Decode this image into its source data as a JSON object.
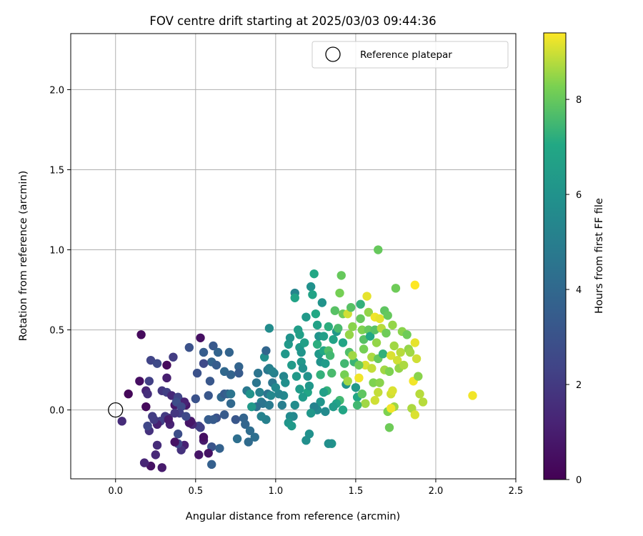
{
  "chart_data": {
    "type": "scatter",
    "title": "FOV centre drift starting at 2025/03/03 09:44:36",
    "xlabel": "Angular distance from reference (arcmin)",
    "ylabel": "Rotation from reference (arcmin)",
    "xlim": [
      -0.28,
      2.5
    ],
    "ylim": [
      -0.43,
      2.35
    ],
    "xticks": [
      0.0,
      0.5,
      1.0,
      1.5,
      2.0,
      2.5
    ],
    "yticks": [
      0.0,
      0.5,
      1.0,
      1.5,
      2.0
    ],
    "grid": true,
    "legend": {
      "location": "upper right",
      "entries": [
        "Reference platepar"
      ]
    },
    "reference_point": {
      "label": "Reference platepar",
      "x": 0.0,
      "y": 0.0
    },
    "colorbar": {
      "label": "Hours from first FF file",
      "range": [
        0,
        9.4
      ],
      "ticks": [
        0,
        2,
        4,
        6,
        8
      ],
      "colormap": "viridis"
    },
    "points": [
      [
        0.16,
        0.47,
        0.3
      ],
      [
        0.08,
        0.1,
        0.2
      ],
      [
        0.15,
        0.18,
        0.5
      ],
      [
        0.04,
        -0.07,
        1.5
      ],
      [
        0.19,
        0.02,
        0.3
      ],
      [
        0.19,
        0.12,
        1.2
      ],
      [
        0.2,
        0.1,
        1.6
      ],
      [
        0.21,
        0.18,
        2.2
      ],
      [
        0.22,
        0.31,
        2.4
      ],
      [
        0.26,
        0.29,
        2.6
      ],
      [
        0.29,
        0.12,
        1.9
      ],
      [
        0.32,
        0.11,
        2.2
      ],
      [
        0.32,
        0.28,
        0.3
      ],
      [
        0.32,
        0.2,
        1.0
      ],
      [
        0.36,
        0.33,
        2.1
      ],
      [
        0.35,
        0.09,
        1.4
      ],
      [
        0.39,
        0.08,
        2.4
      ],
      [
        0.37,
        0.03,
        0.8
      ],
      [
        0.42,
        0.05,
        2.6
      ],
      [
        0.44,
        0.03,
        0.8
      ],
      [
        0.43,
        0.05,
        1.2
      ],
      [
        0.46,
        0.39,
        3.0
      ],
      [
        0.53,
        0.45,
        0.5
      ],
      [
        0.51,
        0.23,
        3.0
      ],
      [
        0.5,
        0.07,
        3.0
      ],
      [
        0.55,
        0.36,
        3.5
      ],
      [
        0.6,
        0.3,
        3.8
      ],
      [
        0.61,
        0.4,
        3.3
      ],
      [
        0.64,
        0.36,
        3.8
      ],
      [
        0.63,
        0.28,
        3.5
      ],
      [
        0.59,
        0.18,
        3.2
      ],
      [
        0.58,
        0.09,
        3.2
      ],
      [
        0.55,
        0.29,
        2.6
      ],
      [
        0.68,
        0.24,
        4.0
      ],
      [
        0.72,
        0.22,
        3.8
      ],
      [
        0.71,
        0.36,
        3.8
      ],
      [
        0.77,
        0.27,
        3.8
      ],
      [
        0.77,
        0.23,
        3.4
      ],
      [
        0.66,
        0.08,
        4.0
      ],
      [
        0.68,
        0.1,
        3.4
      ],
      [
        0.7,
        0.1,
        3.7
      ],
      [
        0.72,
        0.04,
        4.0
      ],
      [
        0.72,
        0.1,
        4.5
      ],
      [
        0.82,
        0.12,
        4.7
      ],
      [
        0.84,
        0.1,
        6.0
      ],
      [
        0.88,
        0.17,
        4.6
      ],
      [
        0.89,
        0.23,
        4.5
      ],
      [
        0.9,
        0.11,
        5.2
      ],
      [
        0.93,
        0.33,
        5.8
      ],
      [
        0.94,
        0.37,
        3.9
      ],
      [
        0.95,
        0.25,
        4.6
      ],
      [
        0.96,
        0.26,
        5.1
      ],
      [
        0.96,
        0.51,
        5.7
      ],
      [
        0.95,
        0.1,
        4.5
      ],
      [
        0.97,
        0.09,
        5.5
      ],
      [
        0.91,
        0.05,
        5.1
      ],
      [
        0.92,
        0.04,
        4.5
      ],
      [
        0.98,
        0.17,
        4.6
      ],
      [
        0.96,
        0.03,
        4.8
      ],
      [
        0.99,
        0.23,
        5.0
      ],
      [
        0.88,
        0.02,
        4.3
      ],
      [
        0.85,
        0.02,
        6.3
      ],
      [
        0.8,
        -0.05,
        3.8
      ],
      [
        0.81,
        -0.09,
        3.9
      ],
      [
        0.84,
        -0.13,
        4.2
      ],
      [
        0.87,
        -0.17,
        4.3
      ],
      [
        0.83,
        -0.2,
        4.1
      ],
      [
        0.76,
        -0.18,
        4.3
      ],
      [
        0.75,
        -0.06,
        3.2
      ],
      [
        0.68,
        -0.03,
        3.4
      ],
      [
        0.63,
        -0.05,
        3.0
      ],
      [
        0.58,
        -0.06,
        3.5
      ],
      [
        0.61,
        -0.06,
        3.4
      ],
      [
        0.6,
        -0.23,
        3.1
      ],
      [
        0.65,
        -0.24,
        3.7
      ],
      [
        0.6,
        -0.34,
        3.6
      ],
      [
        0.55,
        -0.19,
        0.9
      ],
      [
        0.55,
        -0.17,
        0.5
      ],
      [
        0.52,
        -0.1,
        2.5
      ],
      [
        0.53,
        -0.11,
        2.2
      ],
      [
        0.48,
        -0.09,
        1.3
      ],
      [
        0.47,
        -0.07,
        0.8
      ],
      [
        0.43,
        -0.22,
        1.1
      ],
      [
        0.41,
        -0.25,
        1.7
      ],
      [
        0.39,
        -0.21,
        2.5
      ],
      [
        0.39,
        -0.15,
        2.8
      ],
      [
        0.37,
        -0.2,
        0.6
      ],
      [
        0.34,
        -0.09,
        1.2
      ],
      [
        0.33,
        -0.05,
        1.6
      ],
      [
        0.31,
        -0.04,
        2.0
      ],
      [
        0.28,
        -0.07,
        2.2
      ],
      [
        0.26,
        -0.09,
        1.1
      ],
      [
        0.24,
        -0.06,
        2.0
      ],
      [
        0.23,
        -0.04,
        2.1
      ],
      [
        0.21,
        -0.13,
        1.7
      ],
      [
        0.2,
        -0.1,
        2.5
      ],
      [
        0.25,
        -0.28,
        1.4
      ],
      [
        0.26,
        -0.22,
        1.5
      ],
      [
        0.29,
        -0.36,
        0.9
      ],
      [
        0.22,
        -0.35,
        0.6
      ],
      [
        0.18,
        -0.33,
        1.3
      ],
      [
        0.38,
        0.05,
        2.8
      ],
      [
        0.41,
        0.02,
        2.6
      ],
      [
        0.4,
        -0.02,
        2.2
      ],
      [
        0.37,
        -0.02,
        1.9
      ],
      [
        0.33,
        -0.06,
        0.9
      ],
      [
        0.52,
        -0.28,
        0.7
      ],
      [
        0.58,
        -0.27,
        0.6
      ],
      [
        0.46,
        -0.08,
        0.7
      ],
      [
        0.44,
        -0.04,
        2.6
      ],
      [
        1.05,
        0.09,
        5.5
      ],
      [
        1.05,
        0.21,
        5.4
      ],
      [
        1.06,
        0.17,
        5.8
      ],
      [
        1.06,
        0.35,
        6.2
      ],
      [
        1.08,
        0.41,
        6.3
      ],
      [
        1.09,
        0.45,
        6.0
      ],
      [
        1.1,
        0.28,
        6.4
      ],
      [
        1.12,
        0.73,
        5.3
      ],
      [
        1.12,
        0.7,
        6.8
      ],
      [
        1.14,
        0.5,
        6.5
      ],
      [
        1.15,
        0.47,
        6.6
      ],
      [
        1.15,
        0.39,
        6.3
      ],
      [
        1.16,
        0.36,
        6.1
      ],
      [
        1.16,
        0.3,
        6.2
      ],
      [
        1.17,
        0.26,
        5.9
      ],
      [
        1.18,
        0.42,
        6.6
      ],
      [
        1.19,
        0.58,
        6.3
      ],
      [
        1.2,
        0.11,
        6.9
      ],
      [
        1.2,
        0.21,
        6.0
      ],
      [
        1.21,
        0.15,
        6.2
      ],
      [
        1.22,
        0.77,
        5.9
      ],
      [
        1.23,
        0.72,
        6.8
      ],
      [
        1.24,
        0.85,
        7.0
      ],
      [
        1.25,
        0.6,
        7.0
      ],
      [
        1.26,
        0.53,
        6.7
      ],
      [
        1.26,
        0.41,
        7.2
      ],
      [
        1.27,
        0.46,
        6.0
      ],
      [
        1.27,
        0.35,
        6.3
      ],
      [
        1.28,
        0.3,
        6.0
      ],
      [
        1.28,
        0.22,
        7.3
      ],
      [
        1.29,
        0.67,
        6.0
      ],
      [
        1.3,
        0.46,
        6.6
      ],
      [
        1.3,
        0.37,
        7.0
      ],
      [
        1.31,
        0.29,
        6.4
      ],
      [
        1.32,
        0.12,
        7.3
      ],
      [
        1.33,
        0.52,
        7.2
      ],
      [
        1.33,
        0.37,
        7.7
      ],
      [
        1.34,
        0.34,
        7.5
      ],
      [
        1.35,
        0.23,
        7.6
      ],
      [
        1.36,
        0.44,
        6.8
      ],
      [
        1.37,
        0.62,
        7.8
      ],
      [
        1.38,
        0.49,
        6.3
      ],
      [
        1.39,
        0.51,
        7.6
      ],
      [
        1.4,
        0.73,
        8.2
      ],
      [
        1.41,
        0.84,
        8.0
      ],
      [
        1.42,
        0.6,
        8.1
      ],
      [
        1.42,
        0.42,
        6.9
      ],
      [
        1.43,
        0.29,
        7.5
      ],
      [
        1.43,
        0.22,
        8.2
      ],
      [
        1.44,
        0.16,
        6.0
      ],
      [
        1.45,
        0.6,
        9.0
      ],
      [
        1.46,
        0.47,
        8.5
      ],
      [
        1.46,
        0.36,
        7.7
      ],
      [
        1.47,
        0.64,
        7.8
      ],
      [
        1.48,
        0.52,
        8.4
      ],
      [
        1.49,
        0.3,
        7.4
      ],
      [
        1.5,
        0.14,
        6.3
      ],
      [
        1.51,
        0.08,
        7.0
      ],
      [
        1.52,
        0.2,
        9.3
      ],
      [
        1.53,
        0.66,
        7.3
      ],
      [
        1.53,
        0.57,
        8.0
      ],
      [
        1.54,
        0.5,
        8.3
      ],
      [
        1.55,
        0.44,
        7.8
      ],
      [
        1.55,
        0.38,
        8.2
      ],
      [
        1.56,
        0.28,
        9.1
      ],
      [
        1.57,
        0.71,
        9.2
      ],
      [
        1.58,
        0.61,
        8.5
      ],
      [
        1.58,
        0.5,
        8.0
      ],
      [
        1.59,
        0.46,
        7.0
      ],
      [
        1.6,
        0.33,
        8.7
      ],
      [
        1.6,
        0.26,
        8.9
      ],
      [
        1.61,
        0.17,
        8.3
      ],
      [
        1.62,
        0.58,
        9.3
      ],
      [
        1.62,
        0.5,
        7.8
      ],
      [
        1.63,
        0.42,
        8.5
      ],
      [
        1.64,
        0.32,
        8.0
      ],
      [
        1.64,
        1.0,
        8.0
      ],
      [
        1.65,
        0.57,
        9.2
      ],
      [
        1.66,
        0.51,
        8.8
      ],
      [
        1.67,
        0.35,
        7.3
      ],
      [
        1.68,
        0.62,
        7.9
      ],
      [
        1.68,
        0.25,
        8.6
      ],
      [
        1.69,
        0.48,
        8.1
      ],
      [
        1.7,
        0.59,
        8.0
      ],
      [
        1.71,
        0.24,
        8.3
      ],
      [
        1.72,
        0.34,
        9.1
      ],
      [
        1.73,
        0.53,
        8.5
      ],
      [
        1.74,
        0.4,
        8.6
      ],
      [
        1.75,
        0.76,
        8.1
      ],
      [
        1.76,
        0.31,
        9.0
      ],
      [
        1.77,
        0.26,
        8.5
      ],
      [
        1.78,
        0.36,
        8.8
      ],
      [
        1.79,
        0.49,
        8.4
      ],
      [
        1.8,
        0.28,
        8.7
      ],
      [
        1.82,
        0.47,
        8.1
      ],
      [
        1.83,
        0.38,
        8.5
      ],
      [
        1.84,
        0.36,
        8.6
      ],
      [
        1.86,
        0.18,
        9.3
      ],
      [
        1.87,
        0.78,
        9.4
      ],
      [
        1.87,
        0.42,
        9.2
      ],
      [
        1.88,
        0.32,
        9.0
      ],
      [
        1.89,
        0.21,
        8.4
      ],
      [
        1.9,
        0.1,
        8.8
      ],
      [
        1.92,
        0.05,
        8.8
      ],
      [
        2.23,
        0.09,
        9.3
      ],
      [
        1.72,
        0.1,
        9.0
      ],
      [
        1.73,
        0.12,
        9.1
      ],
      [
        1.74,
        0.02,
        8.6
      ],
      [
        1.7,
        -0.01,
        8.3
      ],
      [
        1.71,
        -0.11,
        8.1
      ],
      [
        1.85,
        0.01,
        8.7
      ],
      [
        1.87,
        -0.03,
        9.1
      ],
      [
        1.72,
        0.01,
        9.3
      ],
      [
        1.65,
        0.17,
        8.4
      ],
      [
        1.64,
        0.11,
        8.9
      ],
      [
        1.62,
        0.06,
        9.0
      ],
      [
        1.56,
        0.04,
        8.6
      ],
      [
        1.54,
        0.1,
        7.9
      ],
      [
        1.52,
        0.28,
        8.1
      ],
      [
        1.51,
        0.03,
        7.5
      ],
      [
        1.48,
        0.34,
        8.6
      ],
      [
        1.45,
        0.18,
        8.6
      ],
      [
        1.42,
        0.0,
        6.9
      ],
      [
        1.4,
        0.06,
        7.5
      ],
      [
        1.38,
        0.04,
        6.8
      ],
      [
        1.36,
        0.02,
        6.4
      ],
      [
        1.35,
        -0.21,
        6.0
      ],
      [
        1.33,
        -0.21,
        5.8
      ],
      [
        1.31,
        -0.01,
        5.6
      ],
      [
        1.3,
        0.11,
        6.6
      ],
      [
        1.28,
        0.05,
        6.1
      ],
      [
        1.26,
        0.0,
        5.6
      ],
      [
        1.24,
        0.02,
        5.2
      ],
      [
        1.22,
        -0.02,
        6.2
      ],
      [
        1.21,
        -0.15,
        5.9
      ],
      [
        1.19,
        -0.19,
        5.8
      ],
      [
        1.17,
        0.08,
        6.4
      ],
      [
        1.15,
        0.13,
        6.4
      ],
      [
        1.13,
        0.21,
        6.3
      ],
      [
        1.12,
        0.03,
        5.7
      ],
      [
        1.11,
        -0.04,
        5.4
      ],
      [
        1.09,
        -0.04,
        5.6
      ],
      [
        1.08,
        -0.08,
        6.1
      ],
      [
        1.1,
        -0.1,
        6.3
      ],
      [
        1.04,
        0.03,
        5.0
      ],
      [
        1.02,
        0.1,
        5.3
      ],
      [
        1.0,
        0.14,
        5.5
      ],
      [
        0.98,
        0.24,
        5.2
      ],
      [
        0.94,
        -0.06,
        5.1
      ],
      [
        0.91,
        -0.04,
        5.2
      ]
    ]
  }
}
